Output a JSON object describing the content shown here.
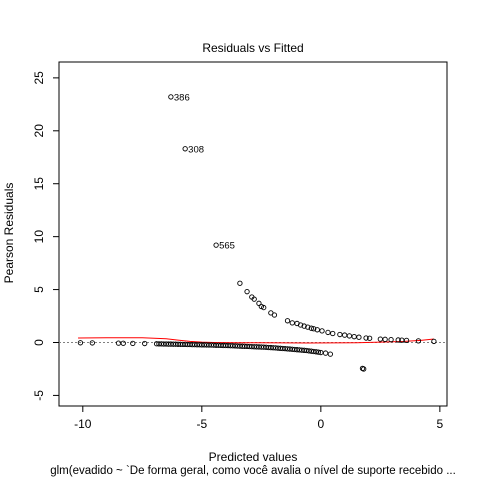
{
  "chart_data": {
    "type": "scatter",
    "title": "Residuals vs Fitted",
    "xlabel": "Predicted values",
    "ylabel": "Pearson Residuals",
    "subtitle": "glm(evadido ~ `De forma geral, como você avalia o nível de suporte recebido ...",
    "xlim": [
      -11,
      5.3
    ],
    "ylim": [
      -6,
      26.5
    ],
    "xticks": [
      -10,
      -5,
      0,
      5
    ],
    "yticks": [
      -5,
      0,
      5,
      10,
      15,
      20,
      25
    ],
    "grid": false,
    "colors": {
      "points": "#000000",
      "reference_line": "#808080",
      "smooth_line": "#ff0000"
    },
    "reference_line_y": 0,
    "labeled_points": [
      {
        "x": -6.3,
        "y": 23.2,
        "label": "386"
      },
      {
        "x": -5.7,
        "y": 18.3,
        "label": "308"
      },
      {
        "x": -4.4,
        "y": 9.2,
        "label": "565"
      }
    ],
    "upper_branch": [
      {
        "x": -3.4,
        "y": 5.6
      },
      {
        "x": -3.1,
        "y": 4.8
      },
      {
        "x": -2.9,
        "y": 4.3
      },
      {
        "x": -2.8,
        "y": 4.1
      },
      {
        "x": -2.6,
        "y": 3.7
      },
      {
        "x": -2.5,
        "y": 3.4
      },
      {
        "x": -2.4,
        "y": 3.3
      },
      {
        "x": -2.1,
        "y": 2.8
      },
      {
        "x": -1.95,
        "y": 2.6
      },
      {
        "x": -1.4,
        "y": 2.05
      },
      {
        "x": -1.2,
        "y": 1.85
      },
      {
        "x": -1.0,
        "y": 1.8
      },
      {
        "x": -0.85,
        "y": 1.65
      },
      {
        "x": -0.7,
        "y": 1.55
      },
      {
        "x": -0.55,
        "y": 1.45
      },
      {
        "x": -0.4,
        "y": 1.35
      },
      {
        "x": -0.3,
        "y": 1.3
      },
      {
        "x": -0.15,
        "y": 1.2
      },
      {
        "x": 0.05,
        "y": 1.1
      },
      {
        "x": 0.3,
        "y": 0.95
      },
      {
        "x": 0.5,
        "y": 0.85
      },
      {
        "x": 0.8,
        "y": 0.75
      },
      {
        "x": 1.0,
        "y": 0.7
      },
      {
        "x": 1.2,
        "y": 0.62
      },
      {
        "x": 1.4,
        "y": 0.55
      },
      {
        "x": 1.6,
        "y": 0.5
      },
      {
        "x": 1.9,
        "y": 0.42
      },
      {
        "x": 2.05,
        "y": 0.4
      },
      {
        "x": 2.5,
        "y": 0.32
      },
      {
        "x": 2.7,
        "y": 0.3
      },
      {
        "x": 2.95,
        "y": 0.27
      },
      {
        "x": 3.25,
        "y": 0.24
      },
      {
        "x": 3.4,
        "y": 0.22
      },
      {
        "x": 3.6,
        "y": 0.2
      },
      {
        "x": 4.1,
        "y": 0.15
      },
      {
        "x": 4.75,
        "y": 0.1
      }
    ],
    "lower_branch": [
      {
        "x": -10.1,
        "y": -0.03
      },
      {
        "x": -9.6,
        "y": -0.04
      },
      {
        "x": -8.5,
        "y": -0.06
      },
      {
        "x": -8.3,
        "y": -0.07
      },
      {
        "x": -7.9,
        "y": -0.08
      },
      {
        "x": -7.4,
        "y": -0.1
      },
      {
        "x": -6.9,
        "y": -0.12
      },
      {
        "x": -6.8,
        "y": -0.13
      },
      {
        "x": -6.7,
        "y": -0.13
      },
      {
        "x": -6.6,
        "y": -0.14
      },
      {
        "x": -6.5,
        "y": -0.14
      },
      {
        "x": -6.4,
        "y": -0.15
      },
      {
        "x": -6.3,
        "y": -0.15
      },
      {
        "x": -6.2,
        "y": -0.16
      },
      {
        "x": -6.1,
        "y": -0.16
      },
      {
        "x": -6.0,
        "y": -0.17
      },
      {
        "x": -5.9,
        "y": -0.17
      },
      {
        "x": -5.8,
        "y": -0.18
      },
      {
        "x": -5.7,
        "y": -0.18
      },
      {
        "x": -5.6,
        "y": -0.19
      },
      {
        "x": -5.5,
        "y": -0.19
      },
      {
        "x": -5.4,
        "y": -0.2
      },
      {
        "x": -5.3,
        "y": -0.2
      },
      {
        "x": -5.2,
        "y": -0.21
      },
      {
        "x": -5.1,
        "y": -0.21
      },
      {
        "x": -5.0,
        "y": -0.22
      },
      {
        "x": -4.9,
        "y": -0.22
      },
      {
        "x": -4.8,
        "y": -0.23
      },
      {
        "x": -4.7,
        "y": -0.24
      },
      {
        "x": -4.6,
        "y": -0.24
      },
      {
        "x": -4.5,
        "y": -0.25
      },
      {
        "x": -4.4,
        "y": -0.26
      },
      {
        "x": -4.3,
        "y": -0.26
      },
      {
        "x": -4.2,
        "y": -0.27
      },
      {
        "x": -4.1,
        "y": -0.28
      },
      {
        "x": -4.0,
        "y": -0.28
      },
      {
        "x": -3.9,
        "y": -0.29
      },
      {
        "x": -3.8,
        "y": -0.3
      },
      {
        "x": -3.7,
        "y": -0.31
      },
      {
        "x": -3.6,
        "y": -0.32
      },
      {
        "x": -3.5,
        "y": -0.33
      },
      {
        "x": -3.4,
        "y": -0.34
      },
      {
        "x": -3.3,
        "y": -0.35
      },
      {
        "x": -3.2,
        "y": -0.36
      },
      {
        "x": -3.1,
        "y": -0.37
      },
      {
        "x": -3.0,
        "y": -0.38
      },
      {
        "x": -2.9,
        "y": -0.39
      },
      {
        "x": -2.8,
        "y": -0.4
      },
      {
        "x": -2.7,
        "y": -0.41
      },
      {
        "x": -2.6,
        "y": -0.42
      },
      {
        "x": -2.5,
        "y": -0.43
      },
      {
        "x": -2.4,
        "y": -0.44
      },
      {
        "x": -2.3,
        "y": -0.45
      },
      {
        "x": -2.2,
        "y": -0.47
      },
      {
        "x": -2.1,
        "y": -0.48
      },
      {
        "x": -2.0,
        "y": -0.5
      },
      {
        "x": -1.9,
        "y": -0.51
      },
      {
        "x": -1.8,
        "y": -0.53
      },
      {
        "x": -1.7,
        "y": -0.55
      },
      {
        "x": -1.6,
        "y": -0.57
      },
      {
        "x": -1.5,
        "y": -0.58
      },
      {
        "x": -1.4,
        "y": -0.6
      },
      {
        "x": -1.3,
        "y": -0.62
      },
      {
        "x": -1.2,
        "y": -0.64
      },
      {
        "x": -1.1,
        "y": -0.66
      },
      {
        "x": -1.0,
        "y": -0.68
      },
      {
        "x": -0.9,
        "y": -0.7
      },
      {
        "x": -0.8,
        "y": -0.72
      },
      {
        "x": -0.7,
        "y": -0.74
      },
      {
        "x": -0.6,
        "y": -0.76
      },
      {
        "x": -0.5,
        "y": -0.79
      },
      {
        "x": -0.4,
        "y": -0.82
      },
      {
        "x": -0.3,
        "y": -0.85
      },
      {
        "x": -0.2,
        "y": -0.88
      },
      {
        "x": -0.1,
        "y": -0.91
      },
      {
        "x": 0.0,
        "y": -0.95
      },
      {
        "x": 0.2,
        "y": -1.0
      },
      {
        "x": 0.4,
        "y": -1.1
      },
      {
        "x": 1.75,
        "y": -2.45
      },
      {
        "x": 1.8,
        "y": -2.5
      }
    ],
    "smooth_curve": [
      {
        "x": -10.2,
        "y": 0.42
      },
      {
        "x": -9.0,
        "y": 0.45
      },
      {
        "x": -7.5,
        "y": 0.45
      },
      {
        "x": -6.5,
        "y": 0.35
      },
      {
        "x": -6.0,
        "y": 0.22
      },
      {
        "x": -5.5,
        "y": 0.1
      },
      {
        "x": -5.0,
        "y": 0.03
      },
      {
        "x": -4.5,
        "y": 0.0
      },
      {
        "x": -3.5,
        "y": -0.02
      },
      {
        "x": -2.5,
        "y": -0.03
      },
      {
        "x": -1.5,
        "y": -0.04
      },
      {
        "x": -0.5,
        "y": -0.05
      },
      {
        "x": 0.5,
        "y": -0.04
      },
      {
        "x": 1.5,
        "y": -0.02
      },
      {
        "x": 2.5,
        "y": 0.03
      },
      {
        "x": 3.5,
        "y": 0.1
      },
      {
        "x": 4.2,
        "y": 0.2
      },
      {
        "x": 4.75,
        "y": 0.33
      }
    ]
  }
}
